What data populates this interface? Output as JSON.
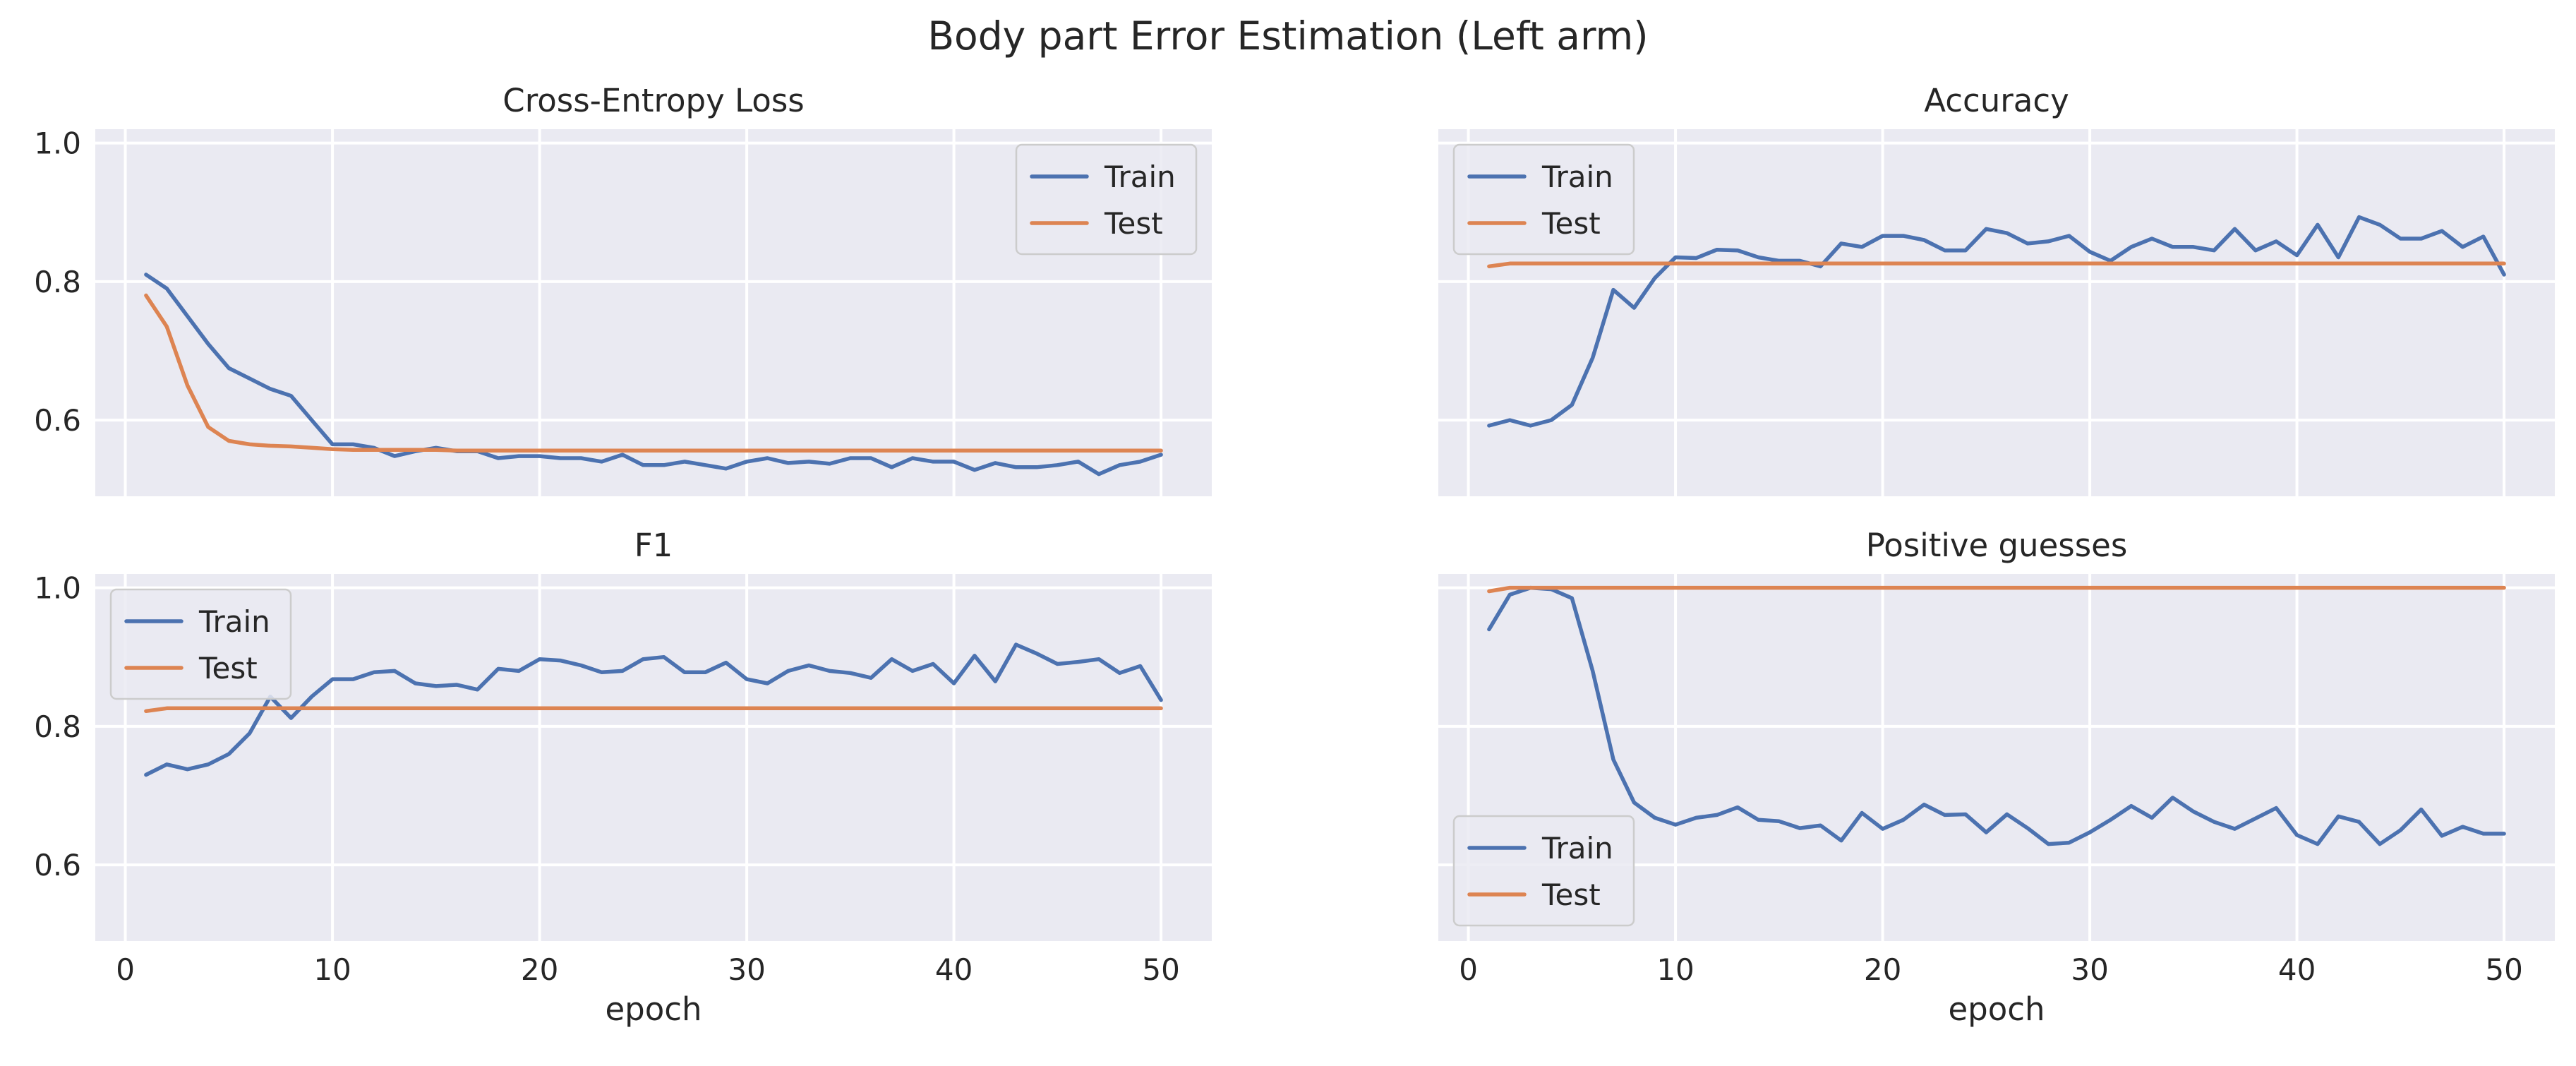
{
  "chart_data": {
    "suptitle": "Body part Error Estimation (Left arm)",
    "colors": {
      "train": "#4c72b0",
      "test": "#dd8452"
    },
    "panels": [
      {
        "type": "line",
        "title": "Cross-Entropy Loss",
        "xlabel": "",
        "xlim": [
          -1.45,
          52.45
        ],
        "ylim": [
          0.49,
          1.02
        ],
        "xticks": [
          0,
          10,
          20,
          30,
          40,
          50
        ],
        "yticks": [
          0.6,
          0.8,
          1.0
        ],
        "ytick_labels": [
          "0.6",
          "0.8",
          "1.0"
        ],
        "show_xtick_labels": false,
        "show_ytick_labels": true,
        "legend": "top-right",
        "x": [
          1,
          2,
          3,
          4,
          5,
          6,
          7,
          8,
          9,
          10,
          11,
          12,
          13,
          14,
          15,
          16,
          17,
          18,
          19,
          20,
          21,
          22,
          23,
          24,
          25,
          26,
          27,
          28,
          29,
          30,
          31,
          32,
          33,
          34,
          35,
          36,
          37,
          38,
          39,
          40,
          41,
          42,
          43,
          44,
          45,
          46,
          47,
          48,
          49,
          50
        ],
        "series": [
          {
            "name": "Train",
            "color_key": "train",
            "values": [
              0.81,
              0.79,
              0.75,
              0.71,
              0.675,
              0.66,
              0.645,
              0.635,
              0.6,
              0.565,
              0.565,
              0.56,
              0.548,
              0.555,
              0.56,
              0.555,
              0.555,
              0.545,
              0.548,
              0.548,
              0.545,
              0.545,
              0.54,
              0.55,
              0.535,
              0.535,
              0.54,
              0.535,
              0.53,
              0.54,
              0.545,
              0.538,
              0.54,
              0.537,
              0.545,
              0.545,
              0.532,
              0.545,
              0.54,
              0.54,
              0.528,
              0.538,
              0.532,
              0.532,
              0.535,
              0.54,
              0.522,
              0.535,
              0.54,
              0.55
            ]
          },
          {
            "name": "Test",
            "color_key": "test",
            "values": [
              0.78,
              0.735,
              0.65,
              0.59,
              0.57,
              0.565,
              0.563,
              0.562,
              0.56,
              0.558,
              0.557,
              0.557,
              0.557,
              0.557,
              0.557,
              0.556,
              0.556,
              0.556,
              0.556,
              0.556,
              0.556,
              0.556,
              0.556,
              0.556,
              0.556,
              0.556,
              0.556,
              0.556,
              0.556,
              0.556,
              0.556,
              0.556,
              0.556,
              0.556,
              0.556,
              0.556,
              0.556,
              0.556,
              0.556,
              0.556,
              0.556,
              0.556,
              0.556,
              0.556,
              0.556,
              0.556,
              0.556,
              0.556,
              0.556,
              0.556
            ]
          }
        ]
      },
      {
        "type": "line",
        "title": "Accuracy",
        "xlabel": "",
        "xlim": [
          -1.45,
          52.45
        ],
        "ylim": [
          0.49,
          1.02
        ],
        "xticks": [
          0,
          10,
          20,
          30,
          40,
          50
        ],
        "yticks": [
          0.6,
          0.8,
          1.0
        ],
        "ytick_labels": [
          "0.6",
          "0.8",
          "1.0"
        ],
        "show_xtick_labels": false,
        "show_ytick_labels": false,
        "legend": "top-left",
        "x": [
          1,
          2,
          3,
          4,
          5,
          6,
          7,
          8,
          9,
          10,
          11,
          12,
          13,
          14,
          15,
          16,
          17,
          18,
          19,
          20,
          21,
          22,
          23,
          24,
          25,
          26,
          27,
          28,
          29,
          30,
          31,
          32,
          33,
          34,
          35,
          36,
          37,
          38,
          39,
          40,
          41,
          42,
          43,
          44,
          45,
          46,
          47,
          48,
          49,
          50
        ],
        "series": [
          {
            "name": "Train",
            "color_key": "train",
            "values": [
              0.592,
              0.6,
              0.592,
              0.6,
              0.622,
              0.69,
              0.788,
              0.762,
              0.805,
              0.835,
              0.834,
              0.846,
              0.845,
              0.835,
              0.83,
              0.83,
              0.822,
              0.855,
              0.85,
              0.866,
              0.866,
              0.86,
              0.845,
              0.845,
              0.876,
              0.87,
              0.855,
              0.858,
              0.866,
              0.843,
              0.83,
              0.85,
              0.862,
              0.85,
              0.85,
              0.845,
              0.876,
              0.845,
              0.858,
              0.838,
              0.882,
              0.835,
              0.893,
              0.882,
              0.862,
              0.862,
              0.873,
              0.85,
              0.865,
              0.81
            ]
          },
          {
            "name": "Test",
            "color_key": "test",
            "values": [
              0.822,
              0.826,
              0.826,
              0.826,
              0.826,
              0.826,
              0.826,
              0.826,
              0.826,
              0.826,
              0.826,
              0.826,
              0.826,
              0.826,
              0.826,
              0.826,
              0.826,
              0.826,
              0.826,
              0.826,
              0.826,
              0.826,
              0.826,
              0.826,
              0.826,
              0.826,
              0.826,
              0.826,
              0.826,
              0.826,
              0.826,
              0.826,
              0.826,
              0.826,
              0.826,
              0.826,
              0.826,
              0.826,
              0.826,
              0.826,
              0.826,
              0.826,
              0.826,
              0.826,
              0.826,
              0.826,
              0.826,
              0.826,
              0.826,
              0.826
            ]
          }
        ]
      },
      {
        "type": "line",
        "title": "F1",
        "xlabel": "epoch",
        "xlim": [
          -1.45,
          52.45
        ],
        "ylim": [
          0.49,
          1.02
        ],
        "xticks": [
          0,
          10,
          20,
          30,
          40,
          50
        ],
        "yticks": [
          0.6,
          0.8,
          1.0
        ],
        "ytick_labels": [
          "0.6",
          "0.8",
          "1.0"
        ],
        "show_xtick_labels": true,
        "show_ytick_labels": true,
        "legend": "top-left",
        "x": [
          1,
          2,
          3,
          4,
          5,
          6,
          7,
          8,
          9,
          10,
          11,
          12,
          13,
          14,
          15,
          16,
          17,
          18,
          19,
          20,
          21,
          22,
          23,
          24,
          25,
          26,
          27,
          28,
          29,
          30,
          31,
          32,
          33,
          34,
          35,
          36,
          37,
          38,
          39,
          40,
          41,
          42,
          43,
          44,
          45,
          46,
          47,
          48,
          49,
          50
        ],
        "series": [
          {
            "name": "Train",
            "color_key": "train",
            "values": [
              0.73,
              0.745,
              0.738,
              0.745,
              0.76,
              0.79,
              0.843,
              0.812,
              0.843,
              0.868,
              0.868,
              0.878,
              0.88,
              0.862,
              0.858,
              0.86,
              0.853,
              0.883,
              0.88,
              0.897,
              0.895,
              0.888,
              0.878,
              0.88,
              0.897,
              0.9,
              0.878,
              0.878,
              0.892,
              0.868,
              0.862,
              0.88,
              0.888,
              0.88,
              0.877,
              0.87,
              0.897,
              0.88,
              0.89,
              0.862,
              0.902,
              0.865,
              0.918,
              0.905,
              0.89,
              0.893,
              0.897,
              0.877,
              0.887,
              0.838
            ]
          },
          {
            "name": "Test",
            "color_key": "test",
            "values": [
              0.822,
              0.826,
              0.826,
              0.826,
              0.826,
              0.826,
              0.826,
              0.826,
              0.826,
              0.826,
              0.826,
              0.826,
              0.826,
              0.826,
              0.826,
              0.826,
              0.826,
              0.826,
              0.826,
              0.826,
              0.826,
              0.826,
              0.826,
              0.826,
              0.826,
              0.826,
              0.826,
              0.826,
              0.826,
              0.826,
              0.826,
              0.826,
              0.826,
              0.826,
              0.826,
              0.826,
              0.826,
              0.826,
              0.826,
              0.826,
              0.826,
              0.826,
              0.826,
              0.826,
              0.826,
              0.826,
              0.826,
              0.826,
              0.826,
              0.826
            ]
          }
        ]
      },
      {
        "type": "line",
        "title": "Positive guesses",
        "xlabel": "epoch",
        "xlim": [
          -1.45,
          52.45
        ],
        "ylim": [
          0.49,
          1.02
        ],
        "xticks": [
          0,
          10,
          20,
          30,
          40,
          50
        ],
        "yticks": [
          0.6,
          0.8,
          1.0
        ],
        "ytick_labels": [
          "0.6",
          "0.8",
          "1.0"
        ],
        "show_xtick_labels": true,
        "show_ytick_labels": false,
        "legend": "bottom-left",
        "x": [
          1,
          2,
          3,
          4,
          5,
          6,
          7,
          8,
          9,
          10,
          11,
          12,
          13,
          14,
          15,
          16,
          17,
          18,
          19,
          20,
          21,
          22,
          23,
          24,
          25,
          26,
          27,
          28,
          29,
          30,
          31,
          32,
          33,
          34,
          35,
          36,
          37,
          38,
          39,
          40,
          41,
          42,
          43,
          44,
          45,
          46,
          47,
          48,
          49,
          50
        ],
        "series": [
          {
            "name": "Train",
            "color_key": "train",
            "values": [
              0.94,
              0.99,
              1.0,
              0.998,
              0.985,
              0.88,
              0.752,
              0.69,
              0.668,
              0.658,
              0.668,
              0.672,
              0.683,
              0.665,
              0.663,
              0.653,
              0.657,
              0.635,
              0.675,
              0.652,
              0.665,
              0.687,
              0.672,
              0.673,
              0.647,
              0.673,
              0.653,
              0.63,
              0.632,
              0.647,
              0.665,
              0.685,
              0.668,
              0.697,
              0.677,
              0.662,
              0.652,
              0.667,
              0.682,
              0.643,
              0.63,
              0.67,
              0.662,
              0.63,
              0.65,
              0.68,
              0.642,
              0.655,
              0.645,
              0.645
            ]
          },
          {
            "name": "Test",
            "color_key": "test",
            "values": [
              0.995,
              1.0,
              1.0,
              1.0,
              1.0,
              1.0,
              1.0,
              1.0,
              1.0,
              1.0,
              1.0,
              1.0,
              1.0,
              1.0,
              1.0,
              1.0,
              1.0,
              1.0,
              1.0,
              1.0,
              1.0,
              1.0,
              1.0,
              1.0,
              1.0,
              1.0,
              1.0,
              1.0,
              1.0,
              1.0,
              1.0,
              1.0,
              1.0,
              1.0,
              1.0,
              1.0,
              1.0,
              1.0,
              1.0,
              1.0,
              1.0,
              1.0,
              1.0,
              1.0,
              1.0,
              1.0,
              1.0,
              1.0,
              1.0,
              1.0
            ]
          }
        ]
      }
    ]
  }
}
